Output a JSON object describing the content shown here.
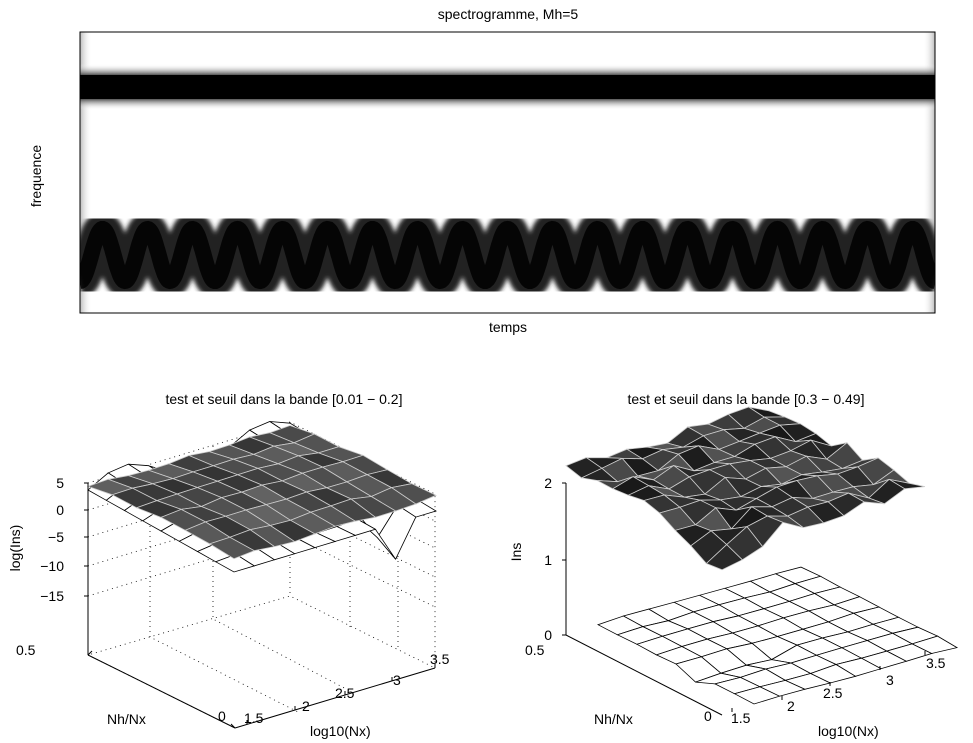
{
  "chart_data": [
    {
      "type": "heatmap",
      "title": "spectrogramme, Mh=5",
      "xlabel": "temps",
      "ylabel": "frequence",
      "grid": false,
      "colormap": "gray inverted (dark = high energy)",
      "components": [
        {
          "kind": "constant tone",
          "position": "upper band"
        },
        {
          "kind": "sinusoidal FM chirp",
          "position": "lower band",
          "cycles": 19
        }
      ]
    },
    {
      "type": "surface3d",
      "title": "test et seuil dans la bande [0.01 − 0.2]",
      "xlabel": "log10(Nx)",
      "ylabel": "Nh/Nx",
      "zlabel": "log(Ins)",
      "xticks": [
        "1.5",
        "2",
        "2.5",
        "3",
        "3.5"
      ],
      "yticks": [
        "0",
        "0.5"
      ],
      "zticks": [
        "5",
        "0",
        "−5",
        "−10",
        "−15"
      ],
      "xlim": [
        1.5,
        3.5
      ],
      "ylim": [
        0,
        0.5
      ],
      "zlim": [
        -15,
        5
      ],
      "grid": true,
      "series": [
        {
          "name": "",
          "style": "white wireframe surface"
        },
        {
          "name": "",
          "style": "dark shaded threshold surface"
        }
      ]
    },
    {
      "type": "surface3d",
      "title": "test et seuil dans la bande [0.3 − 0.49]",
      "xlabel": "log10(Nx)",
      "ylabel": "Nh/Nx",
      "zlabel": "Ins",
      "xticks": [
        "1.5",
        "2",
        "2.5",
        "3",
        "3.5"
      ],
      "yticks": [
        "0",
        "0.5"
      ],
      "zticks": [
        "2",
        "1",
        "0"
      ],
      "xlim": [
        1.5,
        3.5
      ],
      "ylim": [
        0,
        0.5
      ],
      "zlim": [
        0,
        2
      ],
      "grid": false,
      "series": [
        {
          "name": "",
          "style": "dark shaded threshold surface",
          "approx_level": 1.8
        },
        {
          "name": "",
          "style": "white wireframe surface",
          "approx_level": 0.05
        }
      ]
    }
  ]
}
